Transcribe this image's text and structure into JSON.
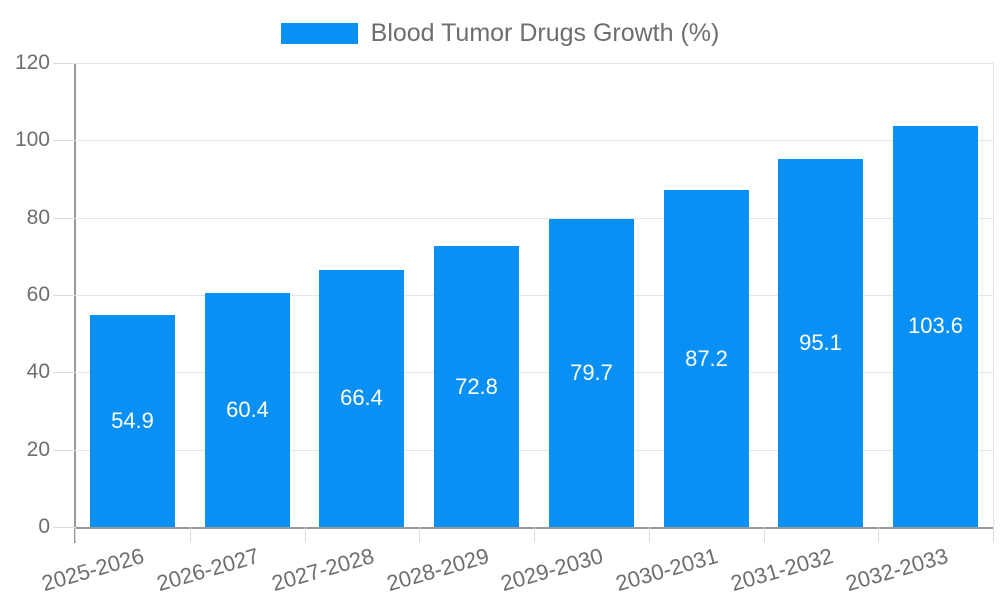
{
  "legend": {
    "label": "Blood Tumor Drugs Growth (%)"
  },
  "chart_data": {
    "type": "bar",
    "title": "Blood Tumor Drugs Growth (%)",
    "categories": [
      "2025-2026",
      "2026-2027",
      "2027-2028",
      "2028-2029",
      "2029-2030",
      "2030-2031",
      "2031-2032",
      "2032-2033"
    ],
    "values": [
      54.9,
      60.4,
      66.4,
      72.8,
      79.7,
      87.2,
      95.1,
      103.6
    ],
    "value_labels": [
      "54.9",
      "60.4",
      "66.4",
      "72.8",
      "79.7",
      "87.2",
      "95.1",
      "103.6"
    ],
    "xlabel": "",
    "ylabel": "",
    "ylim": [
      0,
      120
    ],
    "y_ticks": [
      0,
      20,
      40,
      60,
      80,
      100,
      120
    ],
    "grid": true,
    "legend_position": "top-center",
    "colors": {
      "bar": "#0990f4",
      "axis_text": "#6e6e6e",
      "value_label": "#ffffff",
      "grid_line": "#e6e6e6",
      "tick_line": "#dcdcdc",
      "axis_line": "#999999",
      "background": "#ffffff"
    }
  }
}
